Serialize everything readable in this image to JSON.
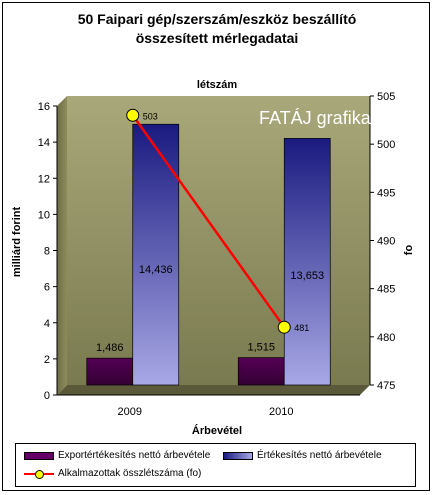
{
  "chart_data": {
    "type": "bar",
    "title": "50 Faipari gép/szerszám/eszköz beszállító",
    "title_line2": "összesített mérlegadatai",
    "subtitle": "létszám",
    "xlabel": "Árbevétel",
    "ylabel_left": "milliárd forint",
    "ylabel_right": "fo",
    "categories": [
      "2009",
      "2010"
    ],
    "ylim": [
      0,
      16
    ],
    "ylim_right": [
      475,
      505
    ],
    "yticks_left": [
      "0",
      "2",
      "4",
      "6",
      "8",
      "10",
      "12",
      "14",
      "16"
    ],
    "yticks_right": [
      "475",
      "480",
      "485",
      "490",
      "495",
      "500",
      "505"
    ],
    "series": [
      {
        "name": "Exportértékesítés nettó árbevétele",
        "values": [
          1.486,
          1.515
        ],
        "labels": [
          "1,486",
          "1,515"
        ],
        "color": "#660066"
      },
      {
        "name": "Értékesítés nettó árbevétele",
        "values": [
          14.436,
          13.653
        ],
        "labels": [
          "14,436",
          "13,653"
        ],
        "color": "#1a1a80",
        "color_light": "#9999dd"
      },
      {
        "name": "Alkalmazottak összlétszáma (fo)",
        "values": [
          503,
          481
        ],
        "labels": [
          "503",
          "481"
        ],
        "axis": "right",
        "type": "line",
        "color": "#ff0000",
        "marker_color": "#ffff00"
      }
    ],
    "watermark": "FATÁJ grafika",
    "legend_position": "bottom",
    "grid": false,
    "plot_background": "#8c8c5c"
  }
}
